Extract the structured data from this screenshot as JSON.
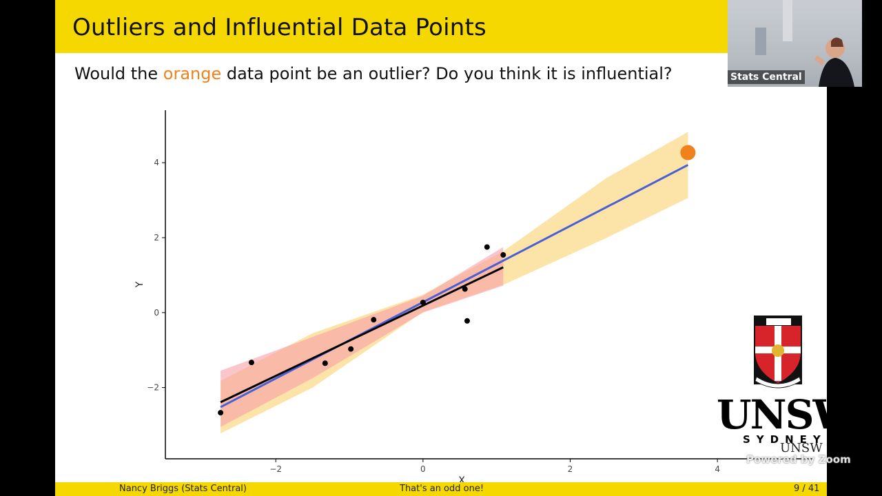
{
  "slide": {
    "title": "Outliers and Influential Data Points",
    "question_before": "Would the ",
    "question_highlight": "orange",
    "question_after": " data point be an outlier? Do you think it is influential?"
  },
  "footer": {
    "author": "Nancy Briggs  (Stats Central)",
    "caption": "That's an odd one!",
    "page": "9 / 41"
  },
  "video": {
    "name": "Stats Central"
  },
  "logo": {
    "wordmark": "UNSW",
    "sub": "SYDNEY",
    "small_wordmark": "UNSW"
  },
  "overlay": {
    "zoom_watermark": "Powered by Zoom"
  },
  "colors": {
    "accent_yellow": "#f5d800",
    "orange_point": "#f0821e",
    "fit_all_line": "#4a5fd6",
    "fit_subset_line": "#000000",
    "band_all": "#fbd98a",
    "band_subset": "#f7a0a8"
  },
  "chart_data": {
    "type": "scatter",
    "xlabel": "X",
    "ylabel": "Y",
    "xlim": [
      -3.5,
      5.3
    ],
    "ylim": [
      -3.9,
      5.4
    ],
    "xticks": [
      -2,
      0,
      2,
      4
    ],
    "yticks": [
      -2,
      0,
      2,
      4
    ],
    "grid": false,
    "points": [
      {
        "x": -2.75,
        "y": -2.67
      },
      {
        "x": -2.33,
        "y": -1.33
      },
      {
        "x": -1.33,
        "y": -1.35
      },
      {
        "x": -0.98,
        "y": -0.97
      },
      {
        "x": -0.67,
        "y": -0.19
      },
      {
        "x": 0.0,
        "y": 0.27
      },
      {
        "x": 0.57,
        "y": 0.63
      },
      {
        "x": 0.6,
        "y": -0.22
      },
      {
        "x": 0.87,
        "y": 1.75
      },
      {
        "x": 1.09,
        "y": 1.54
      }
    ],
    "highlight_point": {
      "x": 3.6,
      "y": 4.27,
      "color": "#f0821e"
    },
    "fit_with_outlier": {
      "color": "#4a5fd6",
      "line": [
        [
          -2.75,
          -2.52
        ],
        [
          3.6,
          3.94
        ]
      ],
      "band": {
        "x": [
          -2.75,
          -1.5,
          0.0,
          1.1,
          2.5,
          3.6
        ],
        "lower": [
          -3.22,
          -2.0,
          0.02,
          0.75,
          2.0,
          3.06
        ],
        "upper": [
          -1.82,
          -0.55,
          0.48,
          1.65,
          3.6,
          4.82
        ]
      }
    },
    "fit_without_outlier": {
      "color": "#000000",
      "line": [
        [
          -2.75,
          -2.39
        ],
        [
          1.09,
          1.21
        ]
      ],
      "band": {
        "x": [
          -2.75,
          -1.5,
          0.0,
          1.09
        ],
        "lower": [
          -3.05,
          -1.75,
          0.0,
          0.72
        ],
        "upper": [
          -1.55,
          -0.65,
          0.45,
          1.75
        ]
      }
    }
  }
}
